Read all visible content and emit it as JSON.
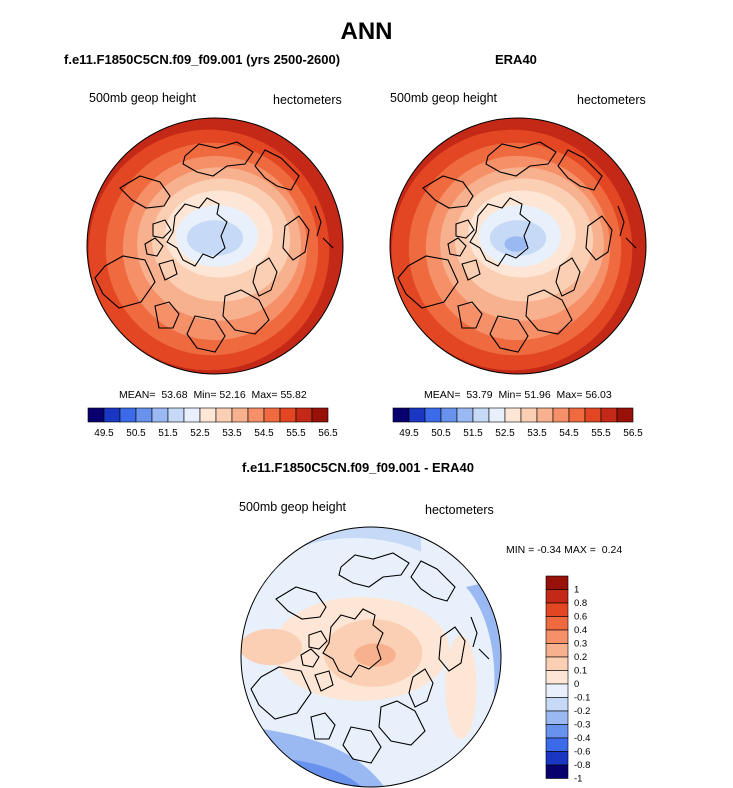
{
  "page": {
    "title": "ANN"
  },
  "colors": {
    "scale_seq": [
      "#08006e",
      "#1a37c4",
      "#3b6bea",
      "#6892ee",
      "#9ab8f2",
      "#c6d9f7",
      "#e8f1fb",
      "#fde6d6",
      "#fbcfb4",
      "#f8b18e",
      "#f59068",
      "#f06a3f",
      "#e24623",
      "#c42816",
      "#971109"
    ],
    "diff_scale": [
      "#08006e",
      "#1a37c4",
      "#3b6bea",
      "#6892ee",
      "#9ab8f2",
      "#c6d9f7",
      "#e8f1fb",
      "#fde6d6",
      "#fbcfb4",
      "#f8b18e",
      "#f59068",
      "#f06a3f",
      "#e24623",
      "#c42816",
      "#971109"
    ],
    "coast": "#000000"
  },
  "panels": [
    {
      "title": "f.e11.F1850C5CN.f09_f09.001 (yrs 2500-2600)",
      "variable": "500mb geop height",
      "units": "hectometers",
      "mean_label": "MEAN=",
      "mean": "53.68",
      "min_label": "Min=",
      "min": "52.16",
      "max_label": "Max=",
      "max": "55.82"
    },
    {
      "title": "ERA40",
      "variable": "500mb geop height",
      "units": "hectometers",
      "mean_label": "MEAN=",
      "mean": "53.79",
      "min_label": "Min=",
      "min": "51.96",
      "max_label": "Max=",
      "max": "56.03"
    }
  ],
  "diff_panel": {
    "title": "f.e11.F1850C5CN.f09_f09.001 - ERA40",
    "variable": "500mb geop height",
    "units": "hectometers",
    "min_label": "MIN =",
    "min": "-0.34",
    "max_label": "MAX =",
    "max": "0.24"
  },
  "chart_data": [
    {
      "type": "heatmap",
      "title": "f.e11.F1850C5CN.f09_f09.001 (yrs 2500-2600)",
      "projection": "polar stereographic, north pole",
      "variable": "500mb geop height",
      "units": "hectometers",
      "mean": 53.68,
      "min": 52.16,
      "max": 55.82,
      "colorbar_ticks": [
        "49.5",
        "50.5",
        "51.5",
        "52.5",
        "53.5",
        "54.5",
        "55.5",
        "56.5"
      ],
      "colorbar_levels": [
        49.5,
        50,
        50.5,
        51,
        51.5,
        52,
        52.5,
        53,
        53.5,
        54,
        54.5,
        55,
        55.5,
        56,
        56.5
      ]
    },
    {
      "type": "heatmap",
      "title": "ERA40",
      "projection": "polar stereographic, north pole",
      "variable": "500mb geop height",
      "units": "hectometers",
      "mean": 53.79,
      "min": 51.96,
      "max": 56.03,
      "colorbar_ticks": [
        "49.5",
        "50.5",
        "51.5",
        "52.5",
        "53.5",
        "54.5",
        "55.5",
        "56.5"
      ],
      "colorbar_levels": [
        49.5,
        50,
        50.5,
        51,
        51.5,
        52,
        52.5,
        53,
        53.5,
        54,
        54.5,
        55,
        55.5,
        56,
        56.5
      ]
    },
    {
      "type": "heatmap",
      "title": "f.e11.F1850C5CN.f09_f09.001 - ERA40",
      "projection": "polar stereographic, north pole",
      "variable": "500mb geop height",
      "units": "hectometers",
      "min": -0.34,
      "max": 0.24,
      "colorbar_ticks": [
        "1",
        "0.8",
        "0.6",
        "0.4",
        "0.3",
        "0.2",
        "0.1",
        "0",
        "-0.1",
        "-0.2",
        "-0.3",
        "-0.4",
        "-0.6",
        "-0.8",
        "-1"
      ]
    }
  ]
}
